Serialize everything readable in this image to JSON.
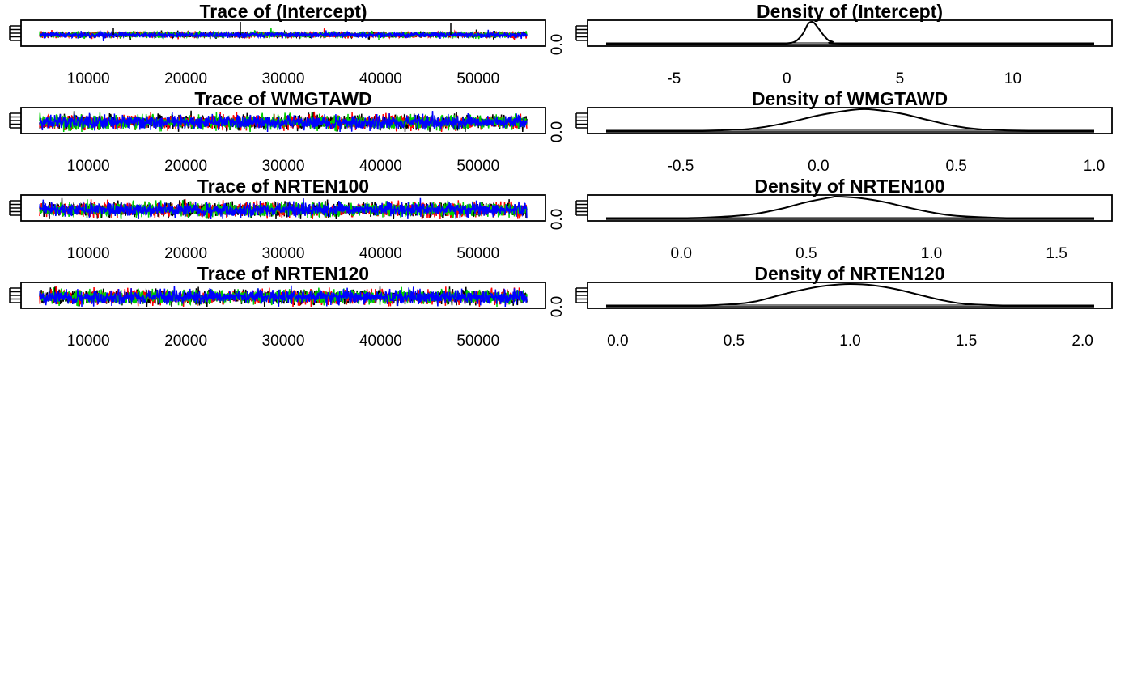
{
  "chart_data": [
    {
      "type": "line",
      "panel": "trace",
      "title": "Trace of (Intercept)",
      "xlim": [
        5000,
        55000
      ],
      "xticks": [
        10000,
        20000,
        30000,
        40000,
        50000
      ],
      "xtick_labels": [
        "10000",
        "20000",
        "30000",
        "40000",
        "50000"
      ],
      "ytick_labels": [
        "0.0"
      ],
      "series": [
        {
          "color": "#000000"
        },
        {
          "color": "#ff0000"
        },
        {
          "color": "#00cc00"
        },
        {
          "color": "#0000ff"
        }
      ]
    },
    {
      "type": "line",
      "panel": "trace",
      "title": "Trace of WMGTAWD",
      "xlim": [
        5000,
        55000
      ],
      "xticks": [
        10000,
        20000,
        30000,
        40000,
        50000
      ],
      "xtick_labels": [
        "10000",
        "20000",
        "30000",
        "40000",
        "50000"
      ],
      "ytick_labels": [
        "0.0"
      ],
      "series": [
        {
          "color": "#000000"
        },
        {
          "color": "#ff0000"
        },
        {
          "color": "#00cc00"
        },
        {
          "color": "#0000ff"
        }
      ]
    },
    {
      "type": "line",
      "panel": "trace",
      "title": "Trace of NRTEN100",
      "xlim": [
        5000,
        55000
      ],
      "xticks": [
        10000,
        20000,
        30000,
        40000,
        50000
      ],
      "xtick_labels": [
        "10000",
        "20000",
        "30000",
        "40000",
        "50000"
      ],
      "ytick_labels": [
        "0.0"
      ],
      "series": [
        {
          "color": "#000000"
        },
        {
          "color": "#ff0000"
        },
        {
          "color": "#00cc00"
        },
        {
          "color": "#0000ff"
        }
      ]
    },
    {
      "type": "line",
      "panel": "trace",
      "title": "Trace of NRTEN120",
      "xlim": [
        5000,
        55000
      ],
      "xticks": [
        10000,
        20000,
        30000,
        40000,
        50000
      ],
      "xtick_labels": [
        "10000",
        "20000",
        "30000",
        "40000",
        "50000"
      ],
      "ytick_labels": [
        "0.0"
      ],
      "series": [
        {
          "color": "#000000"
        },
        {
          "color": "#ff0000"
        },
        {
          "color": "#00cc00"
        },
        {
          "color": "#0000ff"
        }
      ]
    },
    {
      "type": "line",
      "panel": "density",
      "title": "Density of (Intercept)",
      "xlim": [
        -8.0,
        13.6
      ],
      "xticks": [
        -5,
        0,
        5,
        10
      ],
      "xtick_labels": [
        "-5",
        "0",
        "5",
        "10"
      ],
      "x": [
        -8,
        -1,
        0,
        0.4,
        0.7,
        0.9,
        1.0,
        1.1,
        1.2,
        1.4,
        1.7,
        2.0,
        3,
        13.6
      ],
      "y": [
        0,
        0.002,
        0.02,
        0.12,
        0.45,
        0.85,
        0.97,
        1.0,
        0.96,
        0.7,
        0.3,
        0.1,
        0.01,
        0
      ]
    },
    {
      "type": "line",
      "panel": "density",
      "title": "Density of WMGTAWD",
      "xlim": [
        -0.77,
        1.0
      ],
      "xticks": [
        -0.5,
        0.0,
        0.5,
        1.0
      ],
      "xtick_labels": [
        "-0.5",
        "0.0",
        "0.5",
        "1.0"
      ],
      "x": [
        -0.77,
        -0.5,
        -0.3,
        -0.2,
        -0.1,
        0.0,
        0.1,
        0.15,
        0.2,
        0.3,
        0.4,
        0.5,
        0.6,
        0.8,
        1.0
      ],
      "y": [
        0,
        0.005,
        0.06,
        0.18,
        0.42,
        0.72,
        0.93,
        1.0,
        0.98,
        0.8,
        0.5,
        0.22,
        0.07,
        0.01,
        0
      ]
    },
    {
      "type": "line",
      "panel": "density",
      "title": "Density of NRTEN100",
      "xlim": [
        -0.3,
        1.65
      ],
      "xticks": [
        0.0,
        0.5,
        1.0,
        1.5
      ],
      "xtick_labels": [
        "0.0",
        "0.5",
        "1.0",
        "1.5"
      ],
      "x": [
        -0.3,
        0.0,
        0.2,
        0.3,
        0.4,
        0.5,
        0.6,
        0.62,
        0.7,
        0.8,
        0.9,
        1.0,
        1.1,
        1.3,
        1.65
      ],
      "y": [
        0,
        0.01,
        0.1,
        0.22,
        0.45,
        0.75,
        0.97,
        1.0,
        0.95,
        0.78,
        0.52,
        0.28,
        0.12,
        0.02,
        0
      ]
    },
    {
      "type": "line",
      "panel": "density",
      "title": "Density of NRTEN120",
      "xlim": [
        -0.05,
        2.05
      ],
      "xticks": [
        0.0,
        0.5,
        1.0,
        1.5,
        2.0
      ],
      "xtick_labels": [
        "0.0",
        "0.5",
        "1.0",
        "1.5",
        "2.0"
      ],
      "x": [
        -0.05,
        0.3,
        0.5,
        0.6,
        0.7,
        0.8,
        0.9,
        1.0,
        1.1,
        1.2,
        1.3,
        1.4,
        1.5,
        1.7,
        2.05
      ],
      "y": [
        0,
        0.01,
        0.08,
        0.22,
        0.5,
        0.75,
        0.93,
        1.0,
        0.94,
        0.76,
        0.5,
        0.25,
        0.09,
        0.01,
        0
      ]
    }
  ]
}
